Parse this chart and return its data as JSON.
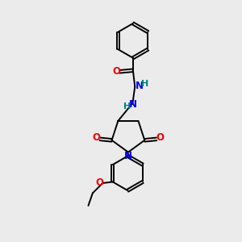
{
  "background_color": "#ebebeb",
  "bond_color": "#000000",
  "nitrogen_color": "#0000ee",
  "oxygen_color": "#ee0000",
  "hydrogen_color": "#008080",
  "figsize": [
    3.0,
    3.0
  ],
  "dpi": 100,
  "xlim": [
    0,
    10
  ],
  "ylim": [
    0,
    10
  ]
}
